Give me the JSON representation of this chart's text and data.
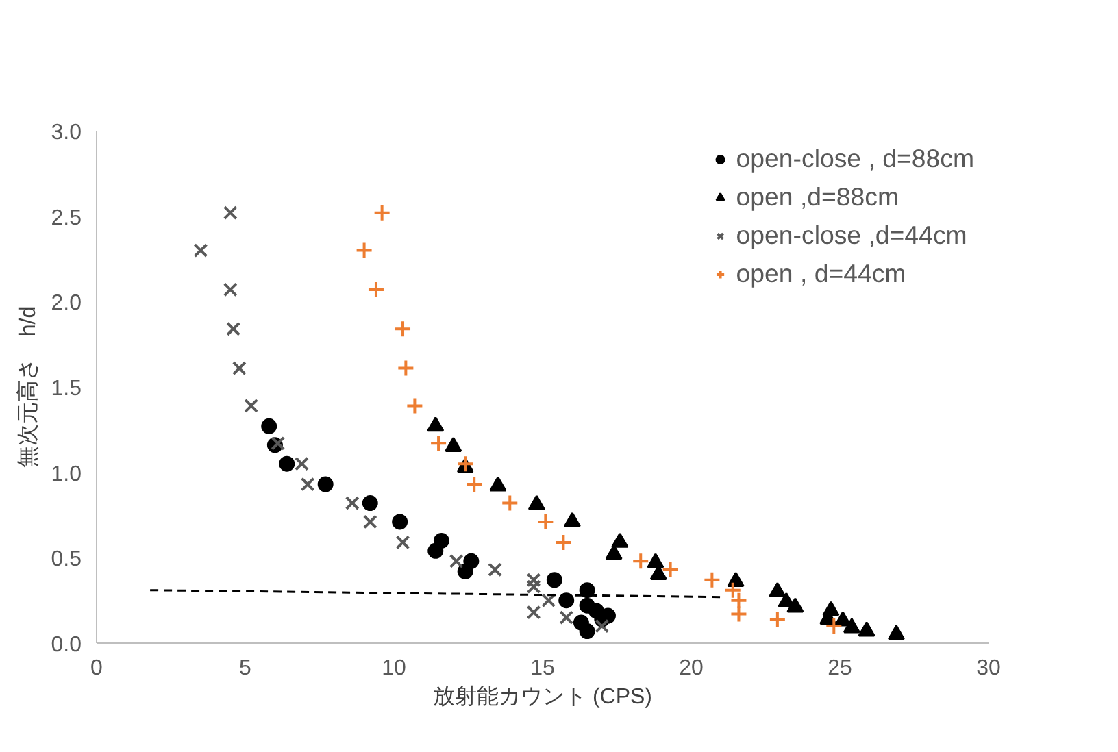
{
  "chart_data": {
    "type": "scatter",
    "xlabel": "放射能カウント (CPS)",
    "ylabel": "無次元高さ　h/d",
    "xlim": [
      0,
      30
    ],
    "xticks": [
      0,
      5,
      10,
      15,
      20,
      25,
      30
    ],
    "ylim": [
      0,
      3.0
    ],
    "yticks": [
      {
        "value": 0,
        "label": "0.0"
      },
      {
        "value": 0.5,
        "label": "0.5"
      },
      {
        "value": 1.0,
        "label": "1.0"
      },
      {
        "value": 1.5,
        "label": "1.5"
      },
      {
        "value": 2.0,
        "label": "2.0"
      },
      {
        "value": 2.5,
        "label": "2.5"
      },
      {
        "value": 3.0,
        "label": "3.0"
      }
    ],
    "grid": false,
    "legend": "top right",
    "series": [
      {
        "name": "open-close , d=88cm",
        "color": "#000000",
        "marker": "circle",
        "x": [
          5.8,
          6.0,
          6.4,
          7.7,
          9.2,
          10.2,
          11.6,
          11.4,
          12.6,
          12.4,
          15.4,
          15.8,
          16.5,
          16.5,
          16.8,
          16.3,
          16.5,
          17.2,
          17.0
        ],
        "values": [
          1.27,
          1.16,
          1.05,
          0.93,
          0.82,
          0.71,
          0.6,
          0.54,
          0.48,
          0.42,
          0.37,
          0.25,
          0.31,
          0.22,
          0.19,
          0.12,
          0.07,
          0.16,
          0.14
        ]
      },
      {
        "name": "open ,d=88cm",
        "color": "#000000",
        "marker": "triangle",
        "x": [
          11.4,
          12.0,
          12.4,
          13.5,
          14.8,
          16.0,
          17.6,
          17.4,
          18.8,
          18.9,
          21.5,
          22.9,
          23.2,
          23.5,
          24.7,
          24.6,
          25.1,
          25.4,
          25.9,
          26.9
        ],
        "values": [
          1.27,
          1.15,
          1.03,
          0.92,
          0.81,
          0.71,
          0.59,
          0.52,
          0.47,
          0.4,
          0.36,
          0.3,
          0.24,
          0.21,
          0.19,
          0.14,
          0.13,
          0.09,
          0.07,
          0.05
        ]
      },
      {
        "name": "open-close ,d=44cm",
        "color": "#595959",
        "marker": "x",
        "x": [
          4.5,
          3.5,
          4.5,
          4.6,
          4.8,
          5.2,
          6.1,
          6.9,
          7.1,
          8.6,
          9.2,
          10.3,
          12.1,
          13.4,
          14.7,
          14.7,
          15.2,
          14.7,
          15.8,
          17.0
        ],
        "values": [
          2.52,
          2.3,
          2.07,
          1.84,
          1.61,
          1.39,
          1.17,
          1.05,
          0.93,
          0.82,
          0.71,
          0.59,
          0.48,
          0.43,
          0.37,
          0.33,
          0.25,
          0.18,
          0.15,
          0.1
        ]
      },
      {
        "name": "open , d=44cm",
        "color": "#ed7d31",
        "marker": "cross",
        "x": [
          9.6,
          9.0,
          9.4,
          10.3,
          10.4,
          10.7,
          11.5,
          12.4,
          12.7,
          13.9,
          15.1,
          15.7,
          18.3,
          19.3,
          20.7,
          21.4,
          21.6,
          21.6,
          22.9,
          24.8
        ],
        "values": [
          2.52,
          2.3,
          2.07,
          1.84,
          1.61,
          1.39,
          1.17,
          1.05,
          0.93,
          0.82,
          0.71,
          0.59,
          0.48,
          0.43,
          0.37,
          0.31,
          0.25,
          0.17,
          0.14,
          0.1
        ]
      },
      {
        "type": "line",
        "color": "#000000",
        "line_style": "dashed",
        "x": [
          1.8,
          21.0
        ],
        "values": [
          0.31,
          0.27
        ]
      }
    ]
  }
}
